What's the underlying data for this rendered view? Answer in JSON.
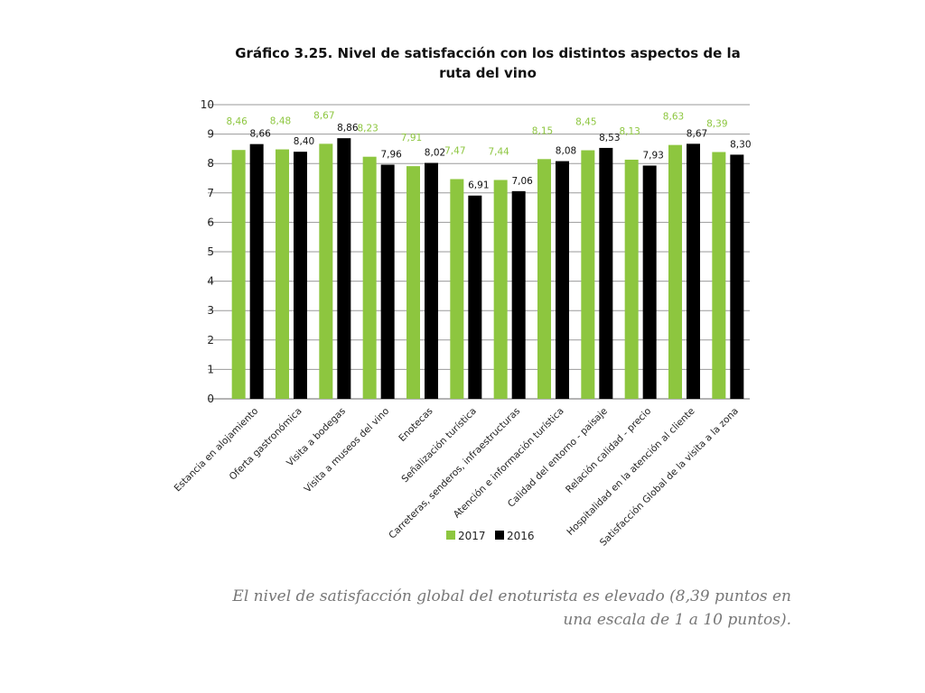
{
  "chart_data": {
    "type": "bar",
    "title": "Gráfico 3.25. Nivel de satisfacción con los distintos aspectos de la ruta del vino",
    "xlabel": "",
    "ylabel": "",
    "ylim": [
      0,
      10
    ],
    "yticks": [
      0,
      1,
      2,
      3,
      4,
      5,
      6,
      7,
      8,
      9,
      10
    ],
    "grid": true,
    "legend_position": "bottom-center",
    "categories": [
      "Estancia en alojamiento",
      "Oferta gastronómica",
      "Visita a bodegas",
      "Visita a museos del vino",
      "Enotecas",
      "Señalización turística",
      "Carreteras, senderos, infraestructuras",
      "Atención e información turística",
      "Calidad del entorno - paisaje",
      "Relación calidad - precio",
      "Hospitalidad en la atención al cliente",
      "Satisfacción Global de la visita a la zona"
    ],
    "series": [
      {
        "name": "2017",
        "color": "#8dc63f",
        "values": [
          8.46,
          8.48,
          8.67,
          8.23,
          7.91,
          7.47,
          7.44,
          8.15,
          8.45,
          8.13,
          8.63,
          8.39
        ],
        "labels": [
          "8,46",
          "8,48",
          "8,67",
          "8,23",
          "7,91",
          "7,47",
          "7,44",
          "8,15",
          "8,45",
          "8,13",
          "8,63",
          "8,39"
        ]
      },
      {
        "name": "2016",
        "color": "#000000",
        "values": [
          8.66,
          8.4,
          8.86,
          7.96,
          8.02,
          6.91,
          7.06,
          8.08,
          8.53,
          7.93,
          8.67,
          8.3
        ],
        "labels": [
          "8,66",
          "8,40",
          "8,86",
          "7,96",
          "8,02",
          "6,91",
          "7,06",
          "8,08",
          "8,53",
          "7,93",
          "8,67",
          "8,30"
        ]
      }
    ]
  },
  "header": {
    "title": "Gráfico 3.25. Nivel de satisfacción con los distintos aspectos de la ruta del vino"
  },
  "caption": {
    "text": "El nivel de satisfacción global del enoturista es elevado (8,39 puntos en una escala de 1 a 10 puntos)."
  }
}
